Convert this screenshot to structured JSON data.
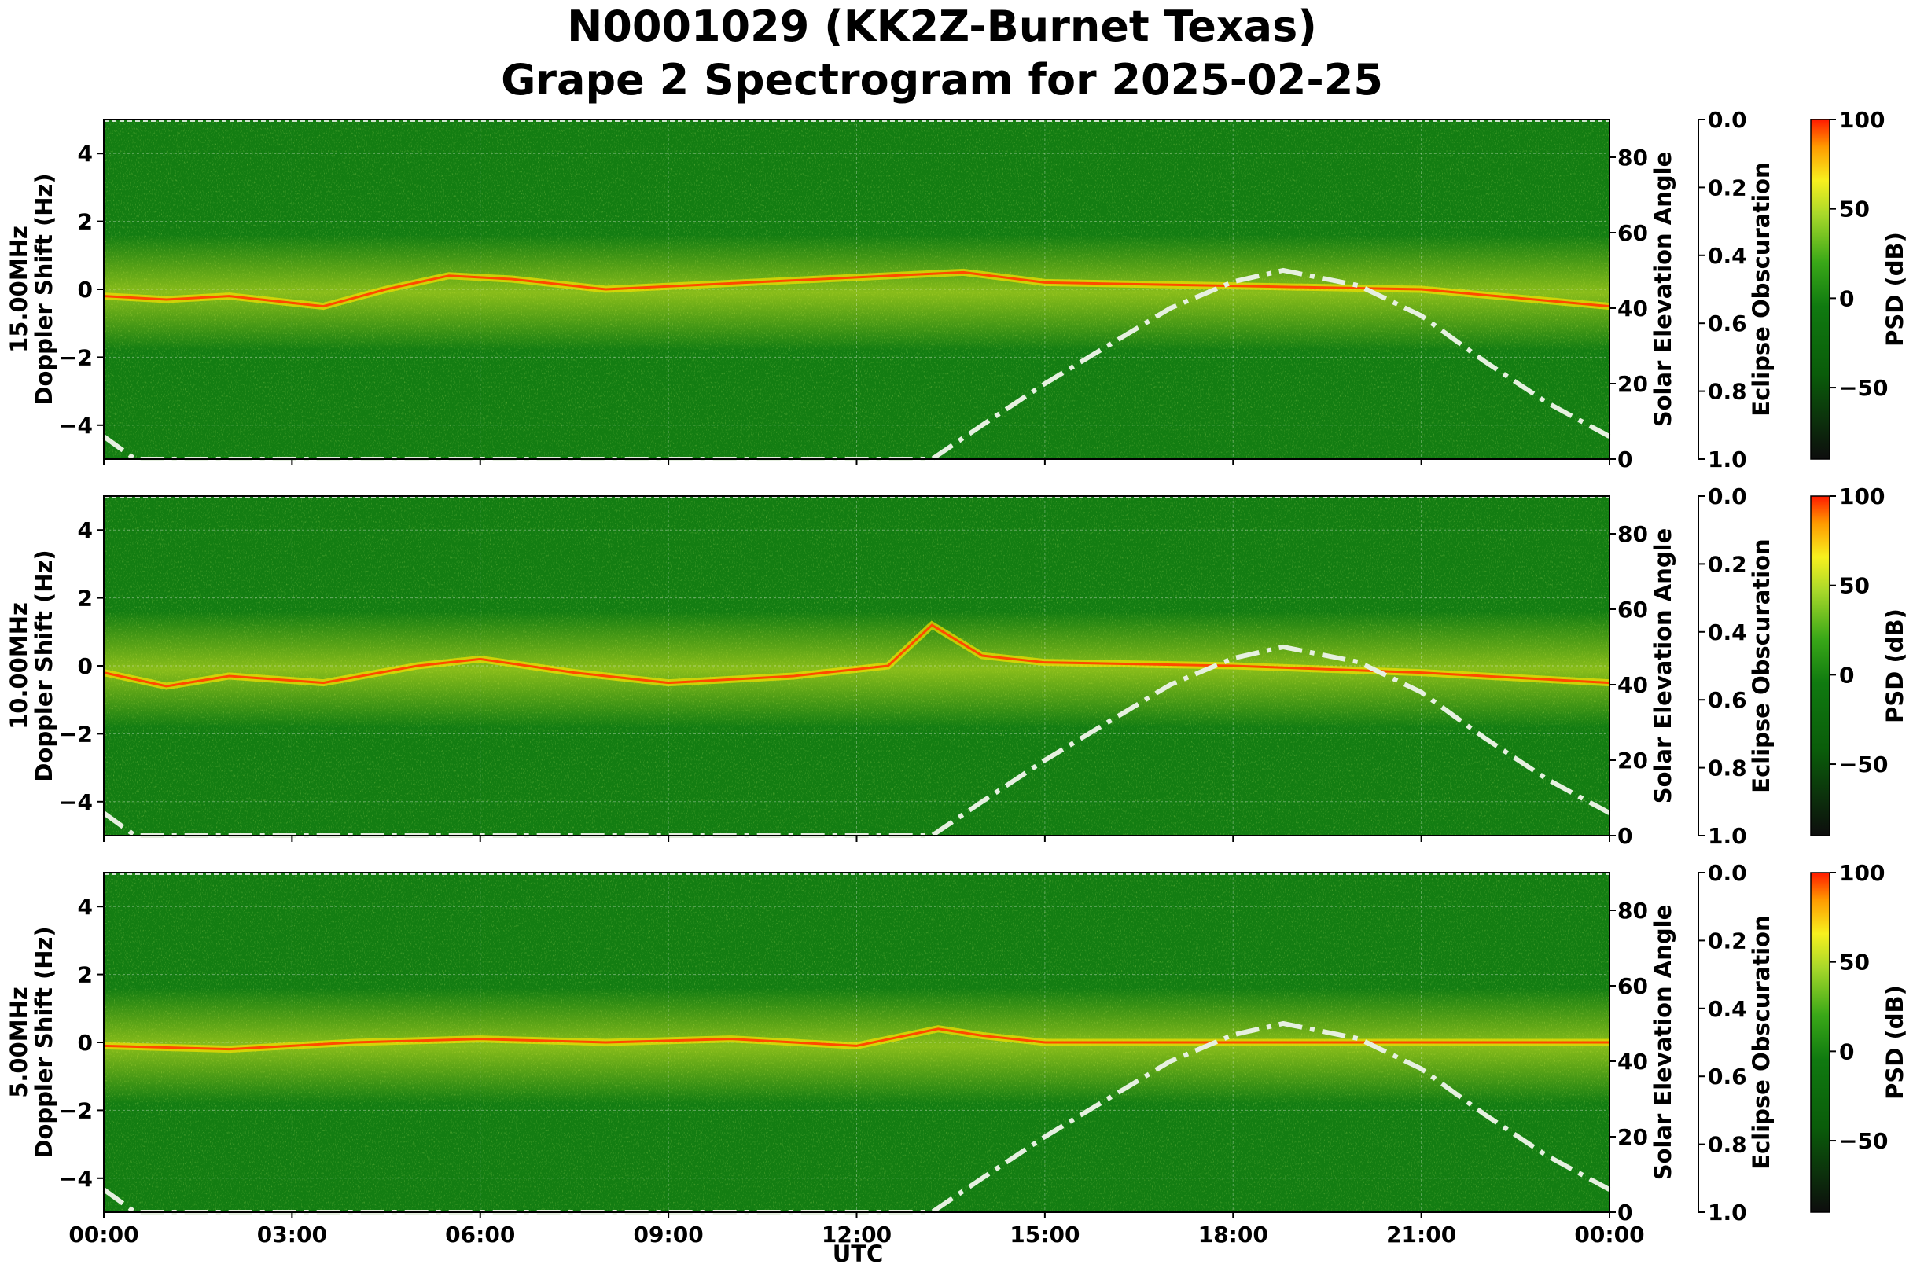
{
  "title_lines": [
    "N0001029 (KK2Z-Burnet Texas)",
    "Grape 2 Spectrogram for 2025-02-25"
  ],
  "chart_data": {
    "type": "heatmap",
    "x_label": "UTC",
    "x_ticks": [
      "00:00",
      "03:00",
      "06:00",
      "09:00",
      "12:00",
      "15:00",
      "18:00",
      "21:00",
      "00:00"
    ],
    "x_range_hours": [
      0,
      24
    ],
    "y_label": "Doppler Shift (Hz)",
    "y_range": [
      -5,
      5
    ],
    "y_ticks": [
      "4",
      "2",
      "0",
      "−2",
      "−4"
    ],
    "right_axis_label": "Solar Elevation Angle",
    "right_axis_range": [
      0,
      90
    ],
    "right_ticks": [
      "80",
      "60",
      "40",
      "20",
      "0"
    ],
    "eclipse_label": "Eclipse Obscuration",
    "eclipse_range": [
      0,
      1
    ],
    "eclipse_ticks": [
      "0.0",
      "0.2",
      "0.4",
      "0.6",
      "0.8",
      "1.0"
    ],
    "colorbar_label": "PSD (dB)",
    "colorbar_range": [
      -90,
      100
    ],
    "colorbar_ticks": [
      "100",
      "50",
      "0",
      "−50"
    ],
    "colormap": [
      "#0d0d0d",
      "#0a5c0a",
      "#107a10",
      "#3aa818",
      "#a8d82a",
      "#f7f01e",
      "#ff9a00",
      "#ff1a00"
    ],
    "grid": true,
    "solar_elevation_hours": [
      0,
      0.5,
      13.2,
      14,
      15,
      16,
      17,
      18,
      18.8,
      20,
      21,
      22,
      23,
      24
    ],
    "solar_elevation_deg": [
      6,
      0,
      0,
      9,
      20,
      30,
      40,
      47,
      50,
      46,
      38,
      26,
      15,
      6
    ],
    "panels": [
      {
        "frequency_label": "15.00MHz",
        "carrier_line_hz": [
          [
            0,
            -0.2
          ],
          [
            1,
            -0.3
          ],
          [
            2,
            -0.2
          ],
          [
            3.5,
            -0.5
          ],
          [
            4.5,
            0.0
          ],
          [
            5.5,
            0.4
          ],
          [
            6.5,
            0.3
          ],
          [
            8,
            0.0
          ],
          [
            13.7,
            0.5
          ],
          [
            15,
            0.2
          ],
          [
            18,
            0.1
          ],
          [
            21,
            0.0
          ],
          [
            24,
            -0.5
          ]
        ]
      },
      {
        "frequency_label": "10.00MHz",
        "carrier_line_hz": [
          [
            0,
            -0.2
          ],
          [
            1,
            -0.6
          ],
          [
            2,
            -0.3
          ],
          [
            3.5,
            -0.5
          ],
          [
            5,
            0.0
          ],
          [
            6,
            0.2
          ],
          [
            7.5,
            -0.2
          ],
          [
            9,
            -0.5
          ],
          [
            11,
            -0.3
          ],
          [
            12.5,
            0.0
          ],
          [
            13.2,
            1.2
          ],
          [
            14,
            0.3
          ],
          [
            15,
            0.1
          ],
          [
            18,
            0.0
          ],
          [
            21,
            -0.2
          ],
          [
            24,
            -0.5
          ]
        ]
      },
      {
        "frequency_label": "5.00MHz",
        "carrier_line_hz": [
          [
            0,
            -0.1
          ],
          [
            2,
            -0.2
          ],
          [
            4,
            0.0
          ],
          [
            6,
            0.1
          ],
          [
            8,
            0.0
          ],
          [
            10,
            0.1
          ],
          [
            12,
            -0.1
          ],
          [
            13.3,
            0.4
          ],
          [
            14,
            0.2
          ],
          [
            15,
            0.0
          ],
          [
            24,
            0.0
          ]
        ]
      }
    ]
  }
}
